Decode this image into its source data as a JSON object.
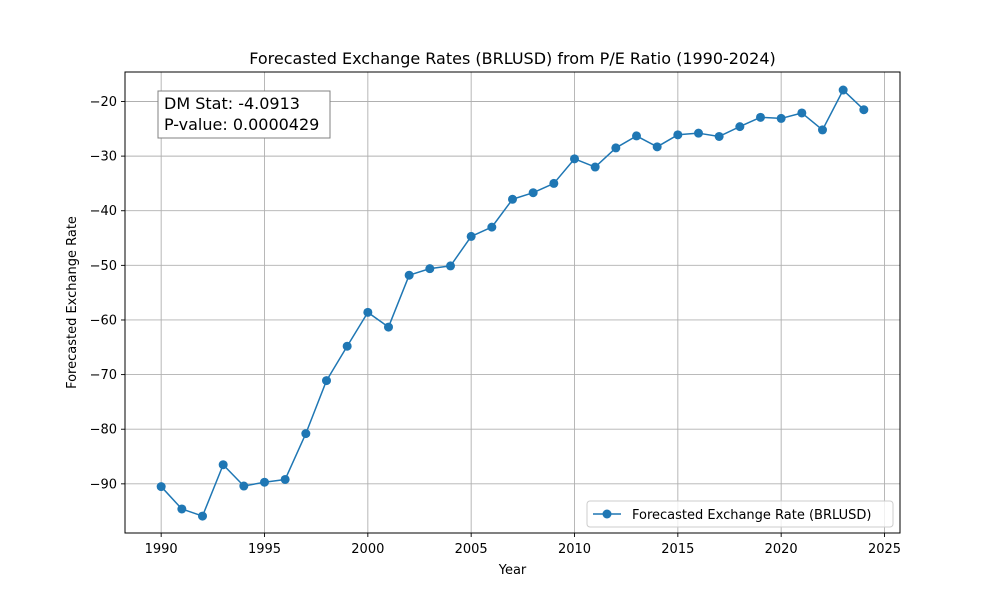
{
  "chart_data": {
    "type": "line",
    "title": "Forecasted Exchange Rates (BRLUSD) from P/E Ratio (1990-2024)",
    "xlabel": "Year",
    "ylabel": "Forecasted Exchange Rate",
    "xlim": [
      1988.25,
      2025.75
    ],
    "ylim": [
      -99.0,
      -14.6
    ],
    "x_ticks": [
      1990,
      1995,
      2000,
      2005,
      2010,
      2015,
      2020,
      2025
    ],
    "y_ticks": [
      -90,
      -80,
      -70,
      -60,
      -50,
      -40,
      -30,
      -20
    ],
    "grid": true,
    "legend_position": "bottom-right",
    "annotation": {
      "lines": [
        "DM Stat: -4.0913",
        "P-value: 0.0000429"
      ],
      "position": "top-left"
    },
    "series": [
      {
        "name": "Forecasted Exchange Rate (BRLUSD)",
        "color": "#1f77b4",
        "marker": "circle",
        "x": [
          1990,
          1991,
          1992,
          1993,
          1994,
          1995,
          1996,
          1997,
          1998,
          1999,
          2000,
          2001,
          2002,
          2003,
          2004,
          2005,
          2006,
          2007,
          2008,
          2009,
          2010,
          2011,
          2012,
          2013,
          2014,
          2015,
          2016,
          2017,
          2018,
          2019,
          2020,
          2021,
          2022,
          2023,
          2024
        ],
        "y": [
          -90.5,
          -94.6,
          -95.9,
          -86.5,
          -90.4,
          -89.7,
          -89.2,
          -80.8,
          -71.1,
          -64.8,
          -58.6,
          -61.3,
          -51.8,
          -50.6,
          -50.1,
          -44.7,
          -43.0,
          -37.9,
          -36.7,
          -35.0,
          -30.5,
          -32.0,
          -28.5,
          -26.3,
          -28.3,
          -26.1,
          -25.8,
          -26.4,
          -24.6,
          -22.9,
          -23.1,
          -22.1,
          -25.2,
          -17.9,
          -21.5
        ]
      }
    ]
  }
}
